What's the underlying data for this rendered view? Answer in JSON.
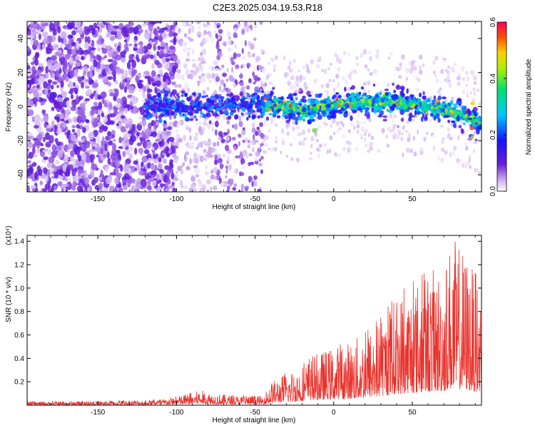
{
  "title": "C2E3.2025.034.19.53.R18",
  "chart_data": [
    {
      "type": "heatmap",
      "title": "C2E3.2025.034.19.53.R18",
      "xlabel": "Height of straight line (km)",
      "ylabel": "Frequency (Hz)",
      "xlim": [
        -195,
        94
      ],
      "ylim": [
        -50,
        50
      ],
      "x_ticks": [
        -150,
        -100,
        -50,
        0,
        50
      ],
      "x_tick_labels": [
        "-150",
        "-100",
        "-50",
        "0",
        "50"
      ],
      "y_ticks": [
        -40,
        -20,
        0,
        20,
        40
      ],
      "y_tick_labels": [
        "-40",
        "-20",
        "0",
        "20",
        "40"
      ],
      "colorbar": {
        "label": "Normalized spectral amplitude",
        "range": [
          0.0,
          0.6
        ],
        "ticks": [
          0.0,
          0.2,
          0.4,
          0.6
        ],
        "tick_labels": [
          "0.0",
          "0.2",
          "0.4",
          "0.6"
        ],
        "colormap": "rainbow (purple-blue-cyan-green-yellow-red)"
      },
      "regions": [
        {
          "x_range": [
            -195,
            -100
          ],
          "description": "dense broadband noise, amplitude ~0.05-0.1, spanning full frequency range"
        },
        {
          "x_range": [
            -100,
            -45
          ],
          "description": "sparser broadband noise, amplitude ~0.02-0.05"
        },
        {
          "x_range": [
            -120,
            -45
          ],
          "description": "narrow band near 0 Hz (-10 to 10 Hz), amplitude ~0.1-0.25"
        },
        {
          "x_range": [
            -45,
            94
          ],
          "description": "signal band centered near 0 Hz (about -15 to 15 Hz), amplitude up to ~0.5, slight downward drift to -10 Hz at right edge"
        }
      ],
      "band_center": [
        {
          "x": -115,
          "y": 0
        },
        {
          "x": -90,
          "y": 0
        },
        {
          "x": -60,
          "y": 1
        },
        {
          "x": -40,
          "y": 1
        },
        {
          "x": -20,
          "y": -2
        },
        {
          "x": 0,
          "y": 1
        },
        {
          "x": 20,
          "y": 3
        },
        {
          "x": 40,
          "y": 2
        },
        {
          "x": 60,
          "y": 0
        },
        {
          "x": 80,
          "y": -4
        },
        {
          "x": 94,
          "y": -10
        }
      ]
    },
    {
      "type": "line",
      "xlabel": "Height of straight line (km)",
      "ylabel": "SNR (10 * v/v)",
      "y_multiplier": "(x10⁴)",
      "xlim": [
        -195,
        94
      ],
      "ylim": [
        0,
        1.45
      ],
      "x_ticks": [
        -150,
        -100,
        -50,
        0,
        50
      ],
      "x_tick_labels": [
        "-150",
        "-100",
        "-50",
        "0",
        "50"
      ],
      "y_ticks": [
        0.2,
        0.4,
        0.6,
        0.8,
        1.0,
        1.2,
        1.4
      ],
      "y_tick_labels": [
        "0.2",
        "0.4",
        "0.6",
        "0.8",
        "1.0",
        "1.2",
        "1.4"
      ],
      "series": [
        {
          "color": "#e8322c",
          "envelope": [
            {
              "x": -195,
              "y": 0.03
            },
            {
              "x": -150,
              "y": 0.035
            },
            {
              "x": -110,
              "y": 0.05
            },
            {
              "x": -95,
              "y": 0.09
            },
            {
              "x": -85,
              "y": 0.13
            },
            {
              "x": -75,
              "y": 0.1
            },
            {
              "x": -60,
              "y": 0.08
            },
            {
              "x": -45,
              "y": 0.08
            },
            {
              "x": -40,
              "y": 0.2
            },
            {
              "x": -30,
              "y": 0.28
            },
            {
              "x": -20,
              "y": 0.35
            },
            {
              "x": -10,
              "y": 0.45
            },
            {
              "x": 0,
              "y": 0.5
            },
            {
              "x": 10,
              "y": 0.55
            },
            {
              "x": 20,
              "y": 0.62
            },
            {
              "x": 30,
              "y": 0.75
            },
            {
              "x": 40,
              "y": 0.95
            },
            {
              "x": 50,
              "y": 1.05
            },
            {
              "x": 60,
              "y": 1.15
            },
            {
              "x": 70,
              "y": 1.2
            },
            {
              "x": 75,
              "y": 1.45
            },
            {
              "x": 85,
              "y": 1.3
            },
            {
              "x": 94,
              "y": 1.0
            }
          ]
        }
      ]
    }
  ]
}
